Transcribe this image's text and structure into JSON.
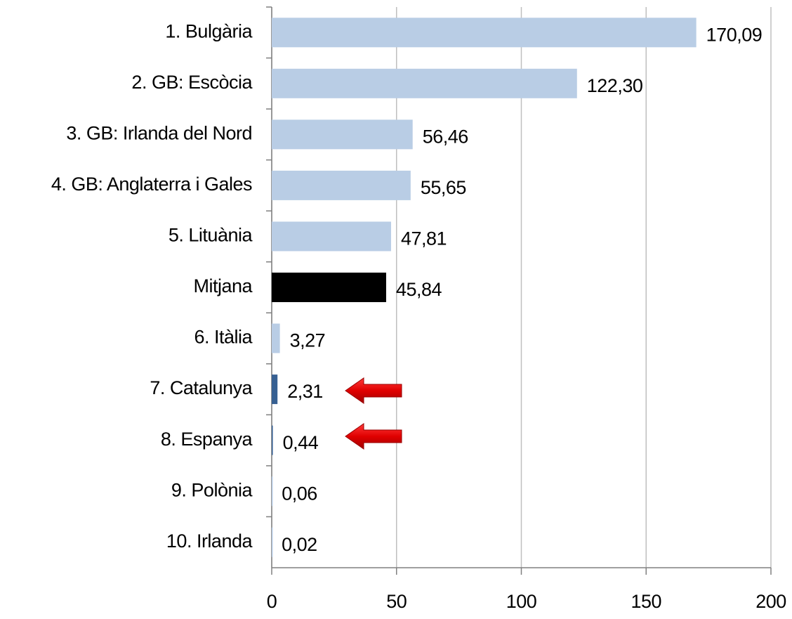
{
  "chart_data": {
    "type": "barh",
    "categories": [
      "1. Bulgària",
      "2. GB:  Escòcia",
      "3. GB:  Irlanda del Nord",
      "4. GB: Anglaterra i Gales",
      "5. Lituània",
      "Mitjana",
      "6. Itàlia",
      "7. Catalunya",
      "8. Espanya",
      "9. Polònia",
      "10. Irlanda"
    ],
    "values": [
      170.09,
      122.3,
      56.46,
      55.65,
      47.81,
      45.84,
      3.27,
      2.31,
      0.44,
      0.06,
      0.02
    ],
    "value_labels": [
      "170,09",
      "122,30",
      "56,46",
      "55,65",
      "47,81",
      "45,84",
      "3,27",
      "2,31",
      "0,44",
      "0,06",
      "0,02"
    ],
    "colors": [
      "#b9cde5",
      "#b9cde5",
      "#b9cde5",
      "#b9cde5",
      "#b9cde5",
      "#000000",
      "#b9cde5",
      "#376092",
      "#376092",
      "#b9cde5",
      "#b9cde5"
    ],
    "xlim": [
      0,
      200
    ],
    "xticks": [
      0,
      50,
      100,
      150,
      200
    ],
    "grid": true
  }
}
